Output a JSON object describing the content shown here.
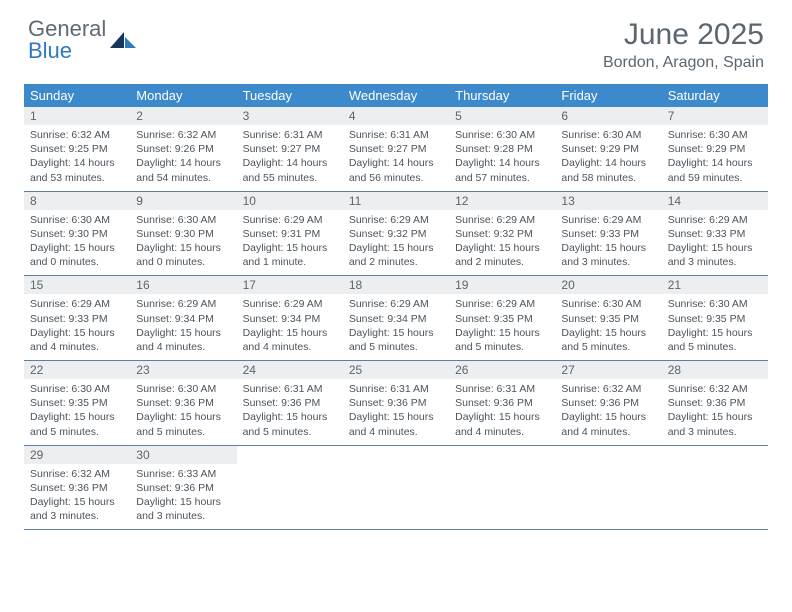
{
  "brand": {
    "part1": "General",
    "part2": "Blue"
  },
  "title": "June 2025",
  "location": "Bordon, Aragon, Spain",
  "colors": {
    "header_bg": "#3c8acb",
    "daynum_bg": "#eceeef",
    "week_border": "#5a7fa3",
    "text_muted": "#5a6670",
    "text_body": "#4b545c",
    "brand_gray": "#5f6a72",
    "brand_blue": "#2f7abf"
  },
  "weekdays": [
    "Sunday",
    "Monday",
    "Tuesday",
    "Wednesday",
    "Thursday",
    "Friday",
    "Saturday"
  ],
  "weeks": [
    [
      {
        "num": "1",
        "sunrise": "Sunrise: 6:32 AM",
        "sunset": "Sunset: 9:25 PM",
        "day1": "Daylight: 14 hours",
        "day2": "and 53 minutes."
      },
      {
        "num": "2",
        "sunrise": "Sunrise: 6:32 AM",
        "sunset": "Sunset: 9:26 PM",
        "day1": "Daylight: 14 hours",
        "day2": "and 54 minutes."
      },
      {
        "num": "3",
        "sunrise": "Sunrise: 6:31 AM",
        "sunset": "Sunset: 9:27 PM",
        "day1": "Daylight: 14 hours",
        "day2": "and 55 minutes."
      },
      {
        "num": "4",
        "sunrise": "Sunrise: 6:31 AM",
        "sunset": "Sunset: 9:27 PM",
        "day1": "Daylight: 14 hours",
        "day2": "and 56 minutes."
      },
      {
        "num": "5",
        "sunrise": "Sunrise: 6:30 AM",
        "sunset": "Sunset: 9:28 PM",
        "day1": "Daylight: 14 hours",
        "day2": "and 57 minutes."
      },
      {
        "num": "6",
        "sunrise": "Sunrise: 6:30 AM",
        "sunset": "Sunset: 9:29 PM",
        "day1": "Daylight: 14 hours",
        "day2": "and 58 minutes."
      },
      {
        "num": "7",
        "sunrise": "Sunrise: 6:30 AM",
        "sunset": "Sunset: 9:29 PM",
        "day1": "Daylight: 14 hours",
        "day2": "and 59 minutes."
      }
    ],
    [
      {
        "num": "8",
        "sunrise": "Sunrise: 6:30 AM",
        "sunset": "Sunset: 9:30 PM",
        "day1": "Daylight: 15 hours",
        "day2": "and 0 minutes."
      },
      {
        "num": "9",
        "sunrise": "Sunrise: 6:30 AM",
        "sunset": "Sunset: 9:30 PM",
        "day1": "Daylight: 15 hours",
        "day2": "and 0 minutes."
      },
      {
        "num": "10",
        "sunrise": "Sunrise: 6:29 AM",
        "sunset": "Sunset: 9:31 PM",
        "day1": "Daylight: 15 hours",
        "day2": "and 1 minute."
      },
      {
        "num": "11",
        "sunrise": "Sunrise: 6:29 AM",
        "sunset": "Sunset: 9:32 PM",
        "day1": "Daylight: 15 hours",
        "day2": "and 2 minutes."
      },
      {
        "num": "12",
        "sunrise": "Sunrise: 6:29 AM",
        "sunset": "Sunset: 9:32 PM",
        "day1": "Daylight: 15 hours",
        "day2": "and 2 minutes."
      },
      {
        "num": "13",
        "sunrise": "Sunrise: 6:29 AM",
        "sunset": "Sunset: 9:33 PM",
        "day1": "Daylight: 15 hours",
        "day2": "and 3 minutes."
      },
      {
        "num": "14",
        "sunrise": "Sunrise: 6:29 AM",
        "sunset": "Sunset: 9:33 PM",
        "day1": "Daylight: 15 hours",
        "day2": "and 3 minutes."
      }
    ],
    [
      {
        "num": "15",
        "sunrise": "Sunrise: 6:29 AM",
        "sunset": "Sunset: 9:33 PM",
        "day1": "Daylight: 15 hours",
        "day2": "and 4 minutes."
      },
      {
        "num": "16",
        "sunrise": "Sunrise: 6:29 AM",
        "sunset": "Sunset: 9:34 PM",
        "day1": "Daylight: 15 hours",
        "day2": "and 4 minutes."
      },
      {
        "num": "17",
        "sunrise": "Sunrise: 6:29 AM",
        "sunset": "Sunset: 9:34 PM",
        "day1": "Daylight: 15 hours",
        "day2": "and 4 minutes."
      },
      {
        "num": "18",
        "sunrise": "Sunrise: 6:29 AM",
        "sunset": "Sunset: 9:34 PM",
        "day1": "Daylight: 15 hours",
        "day2": "and 5 minutes."
      },
      {
        "num": "19",
        "sunrise": "Sunrise: 6:29 AM",
        "sunset": "Sunset: 9:35 PM",
        "day1": "Daylight: 15 hours",
        "day2": "and 5 minutes."
      },
      {
        "num": "20",
        "sunrise": "Sunrise: 6:30 AM",
        "sunset": "Sunset: 9:35 PM",
        "day1": "Daylight: 15 hours",
        "day2": "and 5 minutes."
      },
      {
        "num": "21",
        "sunrise": "Sunrise: 6:30 AM",
        "sunset": "Sunset: 9:35 PM",
        "day1": "Daylight: 15 hours",
        "day2": "and 5 minutes."
      }
    ],
    [
      {
        "num": "22",
        "sunrise": "Sunrise: 6:30 AM",
        "sunset": "Sunset: 9:35 PM",
        "day1": "Daylight: 15 hours",
        "day2": "and 5 minutes."
      },
      {
        "num": "23",
        "sunrise": "Sunrise: 6:30 AM",
        "sunset": "Sunset: 9:36 PM",
        "day1": "Daylight: 15 hours",
        "day2": "and 5 minutes."
      },
      {
        "num": "24",
        "sunrise": "Sunrise: 6:31 AM",
        "sunset": "Sunset: 9:36 PM",
        "day1": "Daylight: 15 hours",
        "day2": "and 5 minutes."
      },
      {
        "num": "25",
        "sunrise": "Sunrise: 6:31 AM",
        "sunset": "Sunset: 9:36 PM",
        "day1": "Daylight: 15 hours",
        "day2": "and 4 minutes."
      },
      {
        "num": "26",
        "sunrise": "Sunrise: 6:31 AM",
        "sunset": "Sunset: 9:36 PM",
        "day1": "Daylight: 15 hours",
        "day2": "and 4 minutes."
      },
      {
        "num": "27",
        "sunrise": "Sunrise: 6:32 AM",
        "sunset": "Sunset: 9:36 PM",
        "day1": "Daylight: 15 hours",
        "day2": "and 4 minutes."
      },
      {
        "num": "28",
        "sunrise": "Sunrise: 6:32 AM",
        "sunset": "Sunset: 9:36 PM",
        "day1": "Daylight: 15 hours",
        "day2": "and 3 minutes."
      }
    ],
    [
      {
        "num": "29",
        "sunrise": "Sunrise: 6:32 AM",
        "sunset": "Sunset: 9:36 PM",
        "day1": "Daylight: 15 hours",
        "day2": "and 3 minutes."
      },
      {
        "num": "30",
        "sunrise": "Sunrise: 6:33 AM",
        "sunset": "Sunset: 9:36 PM",
        "day1": "Daylight: 15 hours",
        "day2": "and 3 minutes."
      },
      {
        "empty": true
      },
      {
        "empty": true
      },
      {
        "empty": true
      },
      {
        "empty": true
      },
      {
        "empty": true
      }
    ]
  ]
}
